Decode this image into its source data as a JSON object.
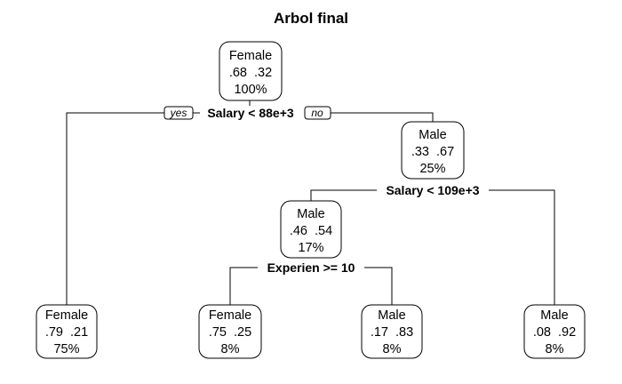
{
  "title": "Arbol final",
  "branch_tags": {
    "yes": "yes",
    "no": "no"
  },
  "splits": {
    "root": "Salary < 88e+3",
    "right": "Salary < 109e+3",
    "mid": "Experien >= 10"
  },
  "nodes": {
    "root": {
      "class": "Female",
      "probs": ".68  .32",
      "pct": "100%"
    },
    "n_male": {
      "class": "Male",
      "probs": ".33  .67",
      "pct": "25%"
    },
    "n_mid": {
      "class": "Male",
      "probs": ".46  .54",
      "pct": "17%"
    },
    "leaf1": {
      "class": "Female",
      "probs": ".79  .21",
      "pct": "75%"
    },
    "leaf2": {
      "class": "Female",
      "probs": ".75  .25",
      "pct": "8%"
    },
    "leaf3": {
      "class": "Male",
      "probs": ".17  .83",
      "pct": "8%"
    },
    "leaf4": {
      "class": "Male",
      "probs": ".08  .92",
      "pct": "8%"
    }
  }
}
